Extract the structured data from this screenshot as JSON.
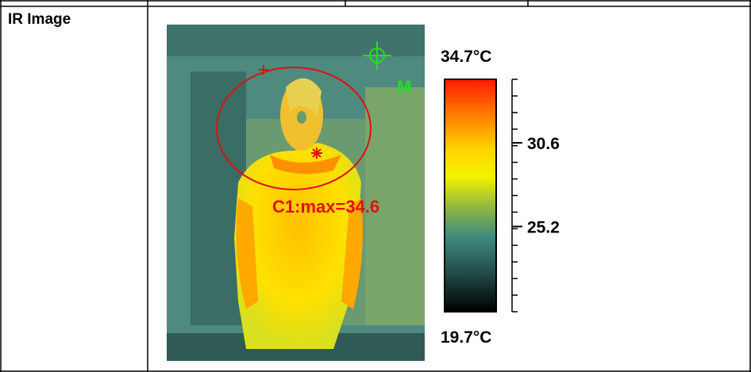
{
  "table": {
    "label": "IR Image"
  },
  "image": {
    "colorbar": {
      "max": {
        "value": 34.7,
        "label": "34.7°C"
      },
      "min": {
        "value": 19.7,
        "label": "19.7°C"
      },
      "ticks": [
        30.6,
        25.2
      ]
    },
    "annotations": [
      "C1:max=34.6",
      "M"
    ]
  }
}
